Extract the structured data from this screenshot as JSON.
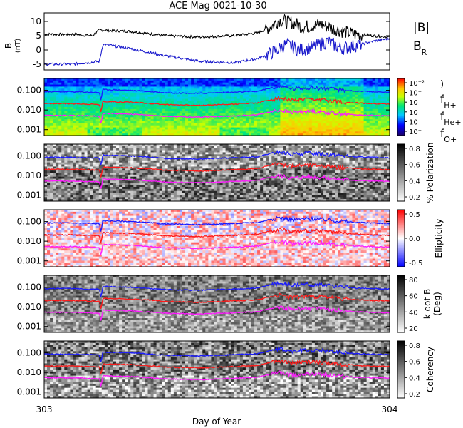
{
  "chart_data": {
    "title": "ACE Mag 0021-10-30",
    "type": "line",
    "xlabel": "Day of Year",
    "xticks": [
      "303",
      "304"
    ],
    "xlim": [
      303,
      304
    ],
    "panels": [
      {
        "id": "mag",
        "type": "line",
        "ylabel": "B",
        "yunit": "(nT)",
        "yticks": [
          "10",
          "5",
          "0",
          "-5"
        ],
        "ylim": [
          -7,
          13
        ],
        "legend": [
          "|B|",
          "B_R"
        ],
        "series": [
          {
            "name": "|B|",
            "color": "#000000",
            "x": [
              303.0,
              303.08,
              303.14,
              303.16,
              303.25,
              303.35,
              303.45,
              303.55,
              303.62,
              303.66,
              303.68,
              303.72,
              303.75,
              303.8,
              303.85,
              303.9,
              303.95,
              304.0
            ],
            "y": [
              5.5,
              5.5,
              5.0,
              7.0,
              6.5,
              5.0,
              4.5,
              5.0,
              6.0,
              8.5,
              10.5,
              9.5,
              8.0,
              9.0,
              7.0,
              5.5,
              5.0,
              4.5
            ]
          },
          {
            "name": "B_R",
            "color": "#1a1acc",
            "x": [
              303.0,
              303.08,
              303.16,
              303.17,
              303.25,
              303.35,
              303.45,
              303.55,
              303.62,
              303.66,
              303.7,
              303.74,
              303.78,
              303.82,
              303.86,
              303.9,
              303.95,
              304.0
            ],
            "y": [
              -5.0,
              -5.0,
              -4.0,
              2.0,
              0.5,
              -2.0,
              -4.0,
              -4.5,
              -3.0,
              -1.0,
              2.0,
              0.0,
              1.0,
              3.0,
              0.5,
              1.5,
              3.0,
              4.0
            ]
          }
        ]
      },
      {
        "id": "spectrum",
        "type": "heatmap",
        "colormap": "rainbow",
        "yscale": "log",
        "yticks": [
          "0.100",
          "0.010",
          "0.001"
        ],
        "ylim": [
          0.0005,
          0.4
        ],
        "colorbar_ticks": [
          "10⁻²",
          "10⁻",
          "10⁻",
          "10⁻",
          "10⁻",
          "10⁻"
        ],
        "legend": [
          "f_H+",
          "f_He+",
          "f_O+"
        ]
      },
      {
        "id": "polarization",
        "type": "heatmap",
        "colormap": "gray",
        "yscale": "log",
        "yticks": [
          "0.100",
          "0.010",
          "0.001"
        ],
        "ylim": [
          0.0005,
          0.4
        ],
        "colorbar_label": "% Polarization",
        "colorbar_ticks": [
          "0.8",
          "0.6",
          "0.4",
          "0.2"
        ]
      },
      {
        "id": "ellipticity",
        "type": "heatmap",
        "colormap": "red-white-blue",
        "yscale": "log",
        "yticks": [
          "0.100",
          "0.010",
          "0.001"
        ],
        "ylim": [
          0.0005,
          0.4
        ],
        "colorbar_label": "Ellipticity",
        "colorbar_ticks": [
          "0.5",
          "0.0",
          "-0.5"
        ]
      },
      {
        "id": "kdotb",
        "type": "heatmap",
        "colormap": "gray",
        "yscale": "log",
        "yticks": [
          "0.100",
          "0.010",
          "0.001"
        ],
        "ylim": [
          0.0005,
          0.4
        ],
        "colorbar_label": "k dot B",
        "colorbar_label2": "(Deg)",
        "colorbar_ticks": [
          "80",
          "60",
          "40",
          "20"
        ]
      },
      {
        "id": "coherency",
        "type": "heatmap",
        "colormap": "gray",
        "yscale": "log",
        "yticks": [
          "0.100",
          "0.010",
          "0.001"
        ],
        "ylim": [
          0.0005,
          0.4
        ],
        "colorbar_label": "Coherency",
        "colorbar_ticks": [
          "0.8",
          "0.6",
          "0.4",
          "0.2"
        ]
      }
    ],
    "gyrofrequency_lines": [
      {
        "name": "f_H+",
        "color": "#1a1aff",
        "x": [
          303.0,
          303.08,
          303.16,
          303.165,
          303.17,
          303.25,
          303.35,
          303.45,
          303.55,
          303.62,
          303.68,
          303.72,
          303.76,
          303.8,
          303.85,
          303.9,
          303.95,
          304.0
        ],
        "y": [
          0.085,
          0.085,
          0.078,
          0.02,
          0.11,
          0.1,
          0.075,
          0.07,
          0.08,
          0.09,
          0.16,
          0.12,
          0.14,
          0.13,
          0.11,
          0.09,
          0.085,
          0.08
        ]
      },
      {
        "name": "f_He+",
        "color": "#ff1a1a",
        "x": [
          303.0,
          303.08,
          303.16,
          303.165,
          303.17,
          303.25,
          303.35,
          303.45,
          303.55,
          303.62,
          303.68,
          303.72,
          303.76,
          303.8,
          303.85,
          303.9,
          303.95,
          304.0
        ],
        "y": [
          0.021,
          0.021,
          0.019,
          0.005,
          0.027,
          0.025,
          0.019,
          0.017,
          0.02,
          0.023,
          0.04,
          0.03,
          0.035,
          0.033,
          0.027,
          0.023,
          0.021,
          0.02
        ]
      },
      {
        "name": "f_O+",
        "color": "#ff1aff",
        "x": [
          303.0,
          303.08,
          303.16,
          303.165,
          303.17,
          303.25,
          303.35,
          303.45,
          303.55,
          303.62,
          303.68,
          303.72,
          303.76,
          303.8,
          303.85,
          303.9,
          303.95,
          304.0
        ],
        "y": [
          0.0053,
          0.0053,
          0.0048,
          0.0013,
          0.0068,
          0.0062,
          0.0047,
          0.0043,
          0.005,
          0.0057,
          0.01,
          0.0075,
          0.0088,
          0.0082,
          0.0068,
          0.0057,
          0.0053,
          0.005
        ]
      }
    ]
  }
}
